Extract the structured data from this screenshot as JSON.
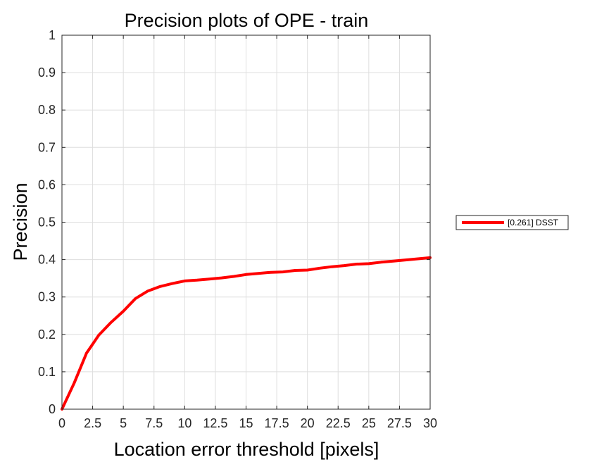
{
  "chart_data": {
    "type": "line",
    "title": "Precision plots of OPE - train",
    "xlabel": "Location error threshold [pixels]",
    "ylabel": "Precision",
    "xlim": [
      0,
      30
    ],
    "ylim": [
      0,
      1
    ],
    "grid": true,
    "xticks": [
      "0",
      "2.5",
      "5",
      "7.5",
      "10",
      "12.5",
      "15",
      "17.5",
      "20",
      "22.5",
      "25",
      "27.5",
      "30"
    ],
    "yticks": [
      "0",
      "0.1",
      "0.2",
      "0.3",
      "0.4",
      "0.5",
      "0.6",
      "0.7",
      "0.8",
      "0.9",
      "1"
    ],
    "legend_position": "outside-right",
    "series": [
      {
        "name": "[0.261] DSST",
        "color": "#ff0000",
        "x": [
          0,
          1,
          2,
          3,
          4,
          5,
          6,
          7,
          8,
          9,
          10,
          11,
          12,
          13,
          14,
          15,
          16,
          17,
          18,
          19,
          20,
          21,
          22,
          23,
          24,
          25,
          26,
          27,
          28,
          29,
          30
        ],
        "y": [
          0.0,
          0.07,
          0.15,
          0.198,
          0.232,
          0.262,
          0.296,
          0.316,
          0.328,
          0.336,
          0.343,
          0.345,
          0.348,
          0.351,
          0.355,
          0.36,
          0.363,
          0.366,
          0.367,
          0.371,
          0.372,
          0.377,
          0.381,
          0.384,
          0.388,
          0.389,
          0.393,
          0.396,
          0.399,
          0.402,
          0.405
        ]
      }
    ]
  }
}
